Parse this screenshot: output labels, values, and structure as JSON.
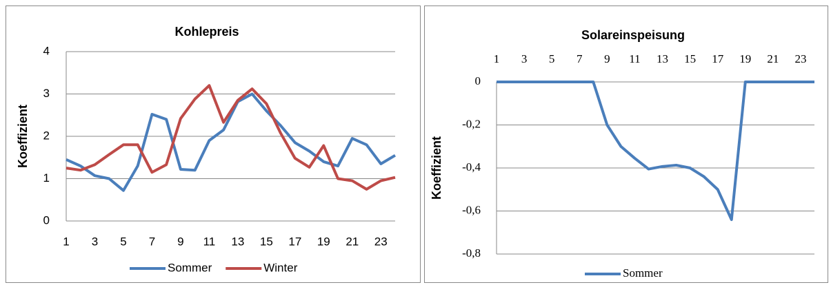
{
  "chart_data": [
    {
      "type": "line",
      "title": "Kohlepreis",
      "y_label": "Koeffizient",
      "categories": [
        1,
        null,
        3,
        null,
        5,
        null,
        7,
        null,
        9,
        null,
        11,
        null,
        13,
        null,
        15,
        null,
        17,
        null,
        19,
        null,
        21,
        null,
        23,
        null
      ],
      "series": [
        {
          "name": "Sommer",
          "color": "#4a7ebb",
          "values": [
            1.45,
            1.3,
            1.07,
            1.0,
            0.72,
            1.3,
            2.52,
            2.4,
            1.22,
            1.2,
            1.9,
            2.15,
            2.82,
            3.0,
            2.6,
            2.25,
            1.85,
            1.65,
            1.4,
            1.3,
            1.95,
            1.8,
            1.35,
            1.55
          ]
        },
        {
          "name": "Winter",
          "color": "#be4b48",
          "values": [
            1.25,
            1.2,
            1.33,
            1.57,
            1.8,
            1.8,
            1.15,
            1.33,
            2.42,
            2.88,
            3.2,
            2.33,
            2.85,
            3.12,
            2.77,
            2.07,
            1.48,
            1.27,
            1.78,
            1.0,
            0.95,
            0.75,
            0.95,
            1.03
          ]
        }
      ],
      "ylim": [
        0,
        4
      ],
      "yticks": [
        0,
        1,
        2,
        3,
        4
      ],
      "grid": true,
      "legend": "bottom",
      "x_axis_position": "bottom"
    },
    {
      "type": "line",
      "title": "Solareinspeisung",
      "y_label": "Koeffizient",
      "categories": [
        1,
        null,
        3,
        null,
        5,
        null,
        7,
        null,
        9,
        null,
        11,
        null,
        13,
        null,
        15,
        null,
        17,
        null,
        19,
        null,
        21,
        null,
        23,
        null
      ],
      "series": [
        {
          "name": "Sommer",
          "color": "#4a7ebb",
          "values": [
            0,
            0,
            0,
            0,
            0,
            0,
            0,
            0,
            -0.2,
            -0.3,
            -0.355,
            -0.405,
            -0.393,
            -0.387,
            -0.4,
            -0.44,
            -0.5,
            -0.64,
            0,
            0,
            0,
            0,
            0,
            0
          ]
        }
      ],
      "ylim": [
        -0.8,
        0
      ],
      "yticks": [
        {
          "value": -0.8,
          "label": "-0,8"
        },
        {
          "value": -0.6,
          "label": "-0,6"
        },
        {
          "value": -0.4,
          "label": "-0,4"
        },
        {
          "value": -0.2,
          "label": "-0,2"
        },
        0
      ],
      "grid": true,
      "legend": "bottom",
      "x_axis_position": "top"
    }
  ]
}
